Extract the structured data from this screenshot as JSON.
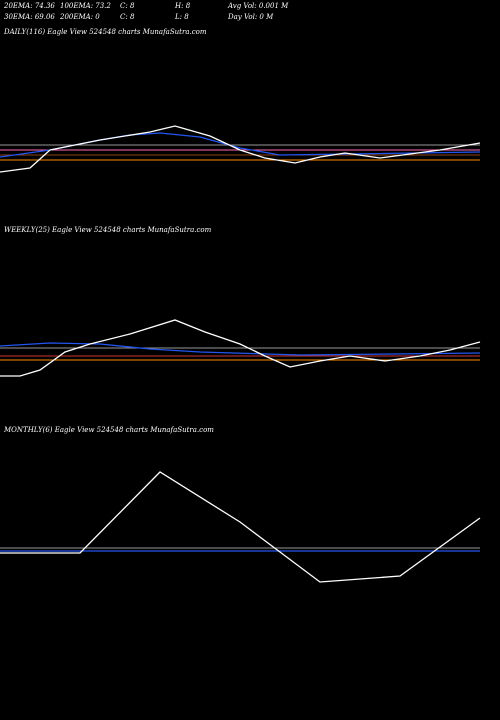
{
  "header": {
    "items": [
      "20EMA: 74.36",
      "100EMA: 73.2",
      "C: 8",
      "H: 8",
      "Avg Vol: 0.001 M",
      "30EMA: 69.06",
      "200EMA: 0",
      "C: 8",
      "L: 8",
      "Day Vol: 0 M"
    ]
  },
  "chart_data": [
    {
      "type": "line",
      "title": "DAILY(116) Eagle  View  524548  charts MunafaSutra.com",
      "xlim": [
        0,
        480
      ],
      "ylim": [
        0,
        100
      ],
      "series": [
        {
          "color": "#ff8c00",
          "x": [
            0,
            480
          ],
          "values": [
            40,
            40
          ]
        },
        {
          "color": "#8b4513",
          "x": [
            0,
            480
          ],
          "values": [
            45,
            45
          ]
        },
        {
          "color": "#ff69b4",
          "x": [
            0,
            480
          ],
          "values": [
            50,
            50
          ]
        },
        {
          "color": "#999999",
          "x": [
            0,
            480
          ],
          "values": [
            55,
            55
          ]
        },
        {
          "color": "#2255ee",
          "x": [
            0,
            50,
            100,
            130,
            160,
            200,
            240,
            280,
            480
          ],
          "values": [
            43,
            50,
            60,
            65,
            67,
            63,
            52,
            45,
            48
          ]
        },
        {
          "color": "#ffffff",
          "x": [
            0,
            30,
            50,
            100,
            150,
            175,
            210,
            240,
            265,
            295,
            320,
            345,
            380,
            410,
            440,
            480
          ],
          "values": [
            28,
            32,
            50,
            60,
            68,
            74,
            64,
            50,
            42,
            37,
            43,
            47,
            42,
            46,
            50,
            57
          ]
        }
      ]
    },
    {
      "type": "line",
      "title": "WEEKLY(25) Eagle  View  524548  charts MunafaSutra.com",
      "xlim": [
        0,
        480
      ],
      "ylim": [
        0,
        100
      ],
      "series": [
        {
          "color": "#ff8c00",
          "x": [
            0,
            480
          ],
          "values": [
            40,
            40
          ]
        },
        {
          "color": "#cc3333",
          "x": [
            0,
            480
          ],
          "values": [
            44,
            44
          ]
        },
        {
          "color": "#999999",
          "x": [
            0,
            480
          ],
          "values": [
            52,
            52
          ]
        },
        {
          "color": "#2255ee",
          "x": [
            0,
            50,
            100,
            150,
            200,
            300,
            480
          ],
          "values": [
            54,
            57,
            56,
            51,
            48,
            45,
            47
          ]
        },
        {
          "color": "#ffffff",
          "x": [
            0,
            20,
            40,
            65,
            90,
            130,
            175,
            205,
            240,
            265,
            290,
            320,
            350,
            385,
            420,
            450,
            480
          ],
          "values": [
            24,
            24,
            30,
            48,
            56,
            66,
            80,
            68,
            56,
            44,
            33,
            39,
            44,
            39,
            44,
            50,
            58
          ]
        }
      ]
    },
    {
      "type": "line",
      "title": "MONTHLY(6) Eagle  View  524548  charts MunafaSutra.com",
      "xlim": [
        0,
        480
      ],
      "ylim": [
        0,
        140
      ],
      "series": [
        {
          "color": "#999999",
          "x": [
            0,
            480
          ],
          "values": [
            52,
            52
          ]
        },
        {
          "color": "#2255ee",
          "x": [
            0,
            480
          ],
          "values": [
            49,
            49
          ]
        },
        {
          "color": "#ffffff",
          "x": [
            0,
            80,
            160,
            240,
            320,
            400,
            480
          ],
          "values": [
            47,
            47,
            128,
            78,
            18,
            24,
            82
          ]
        }
      ]
    }
  ]
}
